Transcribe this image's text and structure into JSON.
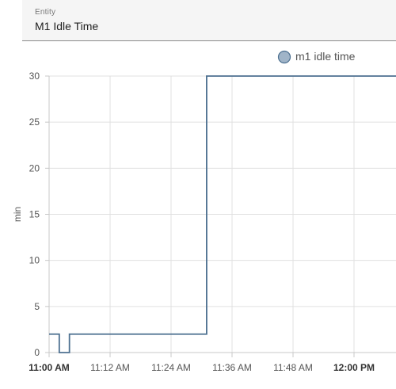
{
  "entity_picker": {
    "label": "Entity",
    "value": "M1 Idle Time"
  },
  "chart_data": {
    "type": "line",
    "step": true,
    "ylabel": "min",
    "xlabel": "",
    "ylim": [
      0,
      30
    ],
    "yticks": [
      0,
      5,
      10,
      15,
      20,
      25,
      30
    ],
    "grid": true,
    "legend_position": "top",
    "x_tick_labels": [
      "11:00 AM",
      "11:12 AM",
      "11:24 AM",
      "11:36 AM",
      "11:48 AM",
      "12:00 PM"
    ],
    "x_tick_bold": [
      true,
      false,
      false,
      false,
      false,
      true
    ],
    "series": [
      {
        "name": "m1 idle time",
        "color": "#4e7191",
        "marker_fill": "#a0b4c8",
        "x": [
          "11:00",
          "11:02",
          "11:04",
          "11:31",
          "12:07"
        ],
        "values": [
          2,
          0,
          2,
          30,
          30
        ]
      }
    ]
  }
}
